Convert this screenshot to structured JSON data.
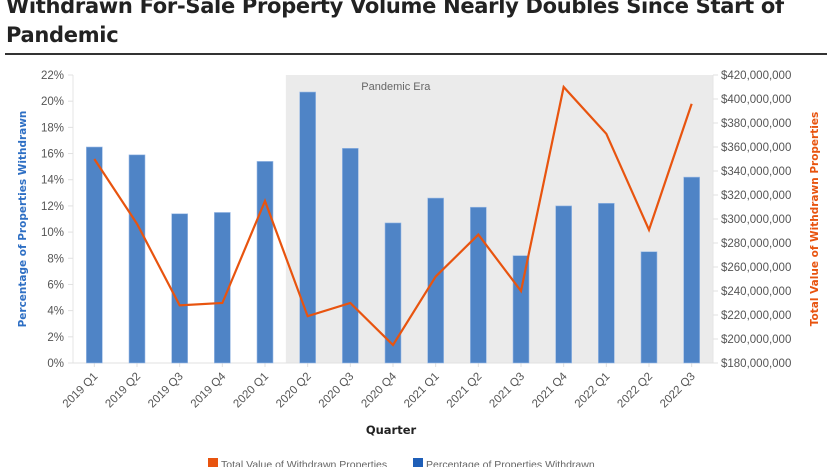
{
  "title": "Withdrawn For-Sale Property Volume Nearly Doubles Since Start of Pandemic",
  "colors": {
    "bar": "#4f84c6",
    "line": "#e8540f",
    "shade": "#ebebeb",
    "axis_left_label": "#2e6fc4",
    "axis_right_label": "#e8540f"
  },
  "chart_data": {
    "type": "bar+line",
    "title": "Withdrawn For-Sale Property Volume Nearly Doubles Since Start of Pandemic",
    "xlabel": "Quarter",
    "ylabel_left": "Percentage of Properties Withdrawn",
    "ylabel_right": "Total Value of Withdrawn Properties",
    "categories": [
      "2019 Q1",
      "2019 Q2",
      "2019 Q3",
      "2019 Q4",
      "2020 Q1",
      "2020 Q2",
      "2020 Q3",
      "2020 Q4",
      "2021 Q1",
      "2021 Q2",
      "2021 Q3",
      "2021 Q4",
      "2022 Q1",
      "2022 Q2",
      "2022 Q3"
    ],
    "series": [
      {
        "name": "Percentage of Properties Withdrawn",
        "type": "bar",
        "axis": "left",
        "unit": "%",
        "values": [
          16.5,
          15.9,
          11.4,
          11.5,
          15.4,
          20.7,
          16.4,
          10.7,
          12.6,
          11.9,
          8.2,
          12.0,
          12.2,
          8.5,
          14.2
        ]
      },
      {
        "name": "Total Value of Withdrawn Properties",
        "type": "line",
        "axis": "right",
        "unit": "$",
        "values": [
          350000000,
          296000000,
          228000000,
          230000000,
          315000000,
          219000000,
          230000000,
          195000000,
          252000000,
          287000000,
          240000000,
          410000000,
          371000000,
          291000000,
          396000000
        ]
      }
    ],
    "ylim_left": [
      0,
      22
    ],
    "yticks_left": [
      "0%",
      "2%",
      "4%",
      "6%",
      "8%",
      "10%",
      "12%",
      "14%",
      "16%",
      "18%",
      "20%",
      "22%"
    ],
    "ylim_right": [
      180000000,
      420000000
    ],
    "yticks_right": [
      "$180,000,000",
      "$200,000,000",
      "$220,000,000",
      "$240,000,000",
      "$260,000,000",
      "$280,000,000",
      "$300,000,000",
      "$320,000,000",
      "$340,000,000",
      "$360,000,000",
      "$380,000,000",
      "$400,000,000",
      "$420,000,000"
    ],
    "annotations": [
      {
        "text": "Pandemic Era",
        "shaded_from": "2020 Q2",
        "shaded_to": "2022 Q3"
      }
    ],
    "legend": [
      "Total Value of Withdrawn Properties",
      "Percentage of Properties Withdrawn"
    ],
    "legend_position": "bottom",
    "grid": false
  }
}
